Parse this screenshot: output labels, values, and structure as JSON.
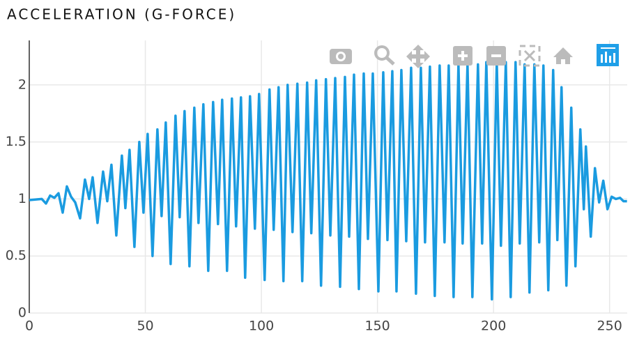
{
  "chart_data": {
    "type": "line",
    "title": "ACCELERATION (G-FORCE)",
    "x": [
      0,
      5.4,
      7.2,
      9,
      10.8,
      12.6,
      14.4,
      16.2,
      18,
      19.8,
      21.9,
      24,
      25.8,
      27.3,
      29.4,
      31.8,
      33.6,
      35.4,
      37.5,
      39.9,
      41.4,
      43.2,
      45.3,
      47.4,
      49.2,
      51,
      53.1,
      55.2,
      57,
      58.8,
      60.9,
      63,
      64.8,
      66.9,
      69,
      71.1,
      72.9,
      75,
      77.1,
      79.2,
      81.3,
      83.1,
      85.2,
      87.3,
      89.1,
      91.2,
      93,
      95.1,
      97.2,
      99,
      101.4,
      103.5,
      105.3,
      107.4,
      109.5,
      111.3,
      113.4,
      115.5,
      117.6,
      119.7,
      121.5,
      123.6,
      125.7,
      127.8,
      129.7,
      131.8,
      133.9,
      136,
      137.8,
      139.9,
      142,
      144.1,
      145.9,
      148,
      150.4,
      152.5,
      154.3,
      156.4,
      158.2,
      160.3,
      162.4,
      164.5,
      166.6,
      168.7,
      170.5,
      172.6,
      174.7,
      176.8,
      178.9,
      180.7,
      182.8,
      184.9,
      186.7,
      188.8,
      190.9,
      193.3,
      195.1,
      196.9,
      199.3,
      201.4,
      203.2,
      205.3,
      207.4,
      209.5,
      211.3,
      213.4,
      215.5,
      217.6,
      219.7,
      221.5,
      223.6,
      225.7,
      227.5,
      229.3,
      231.4,
      233.5,
      235.3,
      237.4,
      238.9,
      239.8,
      241.9,
      243.7,
      245.5,
      247.3,
      249.1,
      250.9,
      252.7,
      254.5,
      256,
      257.5
    ],
    "values": [
      0.99,
      1.0,
      0.96,
      1.03,
      1.01,
      1.05,
      0.88,
      1.11,
      1.02,
      0.97,
      0.83,
      1.17,
      1.0,
      1.19,
      0.79,
      1.24,
      0.98,
      1.3,
      0.68,
      1.38,
      0.92,
      1.43,
      0.58,
      1.5,
      0.88,
      1.57,
      0.5,
      1.61,
      0.85,
      1.67,
      0.43,
      1.73,
      0.84,
      1.77,
      0.41,
      1.8,
      0.79,
      1.83,
      0.37,
      1.85,
      0.78,
      1.87,
      0.37,
      1.88,
      0.76,
      1.89,
      0.31,
      1.9,
      0.74,
      1.92,
      0.29,
      1.96,
      0.73,
      1.98,
      0.28,
      2.0,
      0.71,
      2.01,
      0.28,
      2.02,
      0.7,
      2.04,
      0.24,
      2.05,
      0.68,
      2.06,
      0.23,
      2.07,
      0.67,
      2.09,
      0.21,
      2.1,
      0.65,
      2.1,
      0.19,
      2.11,
      0.64,
      2.12,
      0.19,
      2.13,
      0.63,
      2.15,
      0.17,
      2.15,
      0.62,
      2.16,
      0.15,
      2.17,
      0.62,
      2.17,
      0.14,
      2.18,
      0.61,
      2.18,
      0.14,
      2.18,
      0.61,
      2.2,
      0.12,
      2.2,
      0.59,
      2.2,
      0.14,
      2.2,
      0.61,
      2.18,
      0.18,
      2.18,
      0.62,
      2.17,
      0.2,
      2.13,
      0.64,
      1.98,
      0.24,
      1.8,
      0.41,
      1.61,
      0.91,
      1.46,
      0.67,
      1.27,
      0.97,
      1.16,
      0.91,
      1.02,
      1.0,
      1.01,
      0.98,
      0.98
    ],
    "color": "#1a9be0",
    "xlim": [
      0,
      257.6
    ],
    "xticks": [
      0,
      50,
      100,
      150,
      200,
      250
    ],
    "ylim": [
      0,
      2.39
    ],
    "yticks": [
      0,
      0.5,
      1,
      1.5,
      2
    ],
    "grid": true
  }
}
